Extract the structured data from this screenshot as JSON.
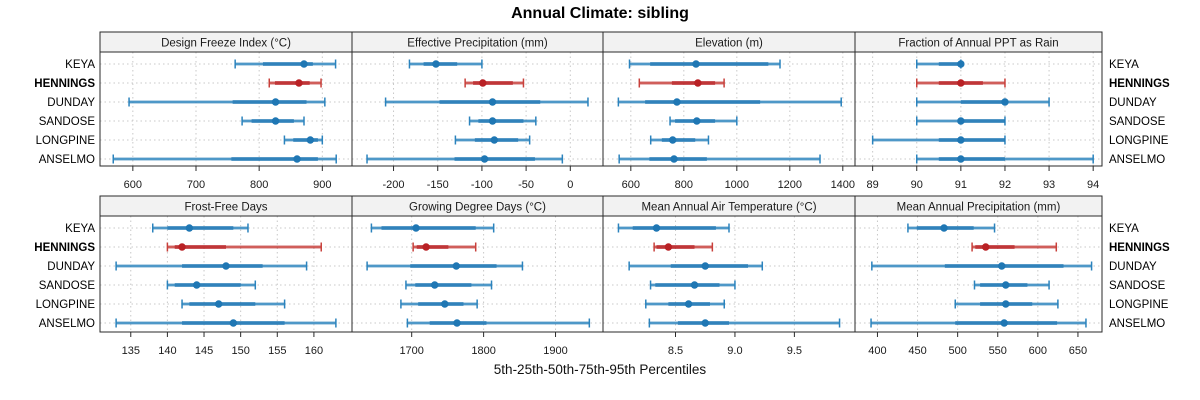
{
  "title": "Annual Climate: sibling",
  "caption": "5th-25th-50th-75th-95th Percentiles",
  "sites": [
    "KEYA",
    "HENNINGS",
    "DUNDAY",
    "SANDOSE",
    "LONGPINE",
    "ANSELMO"
  ],
  "highlight_site": "HENNINGS",
  "colors": {
    "blue_main": "#1f77b4",
    "blue_mid": "#2b83bd",
    "blue_light": "rgba(31,119,180,0.30)",
    "red_main": "#b92125",
    "red_mid": "#c8403b",
    "red_light": "rgba(185,33,37,0.32)",
    "grid": "#c8c8c8",
    "frame": "#2a2a2a",
    "strip_bg": "#f2f2f2",
    "tick_text": "#1a1a1a"
  },
  "chart_data": {
    "type": "scatter",
    "subtype": "trellis-percentile-dotplot",
    "title": "Annual Climate: sibling",
    "xlabel": "5th-25th-50th-75th-95th Percentiles",
    "legend_position": "none",
    "grid": "dotted",
    "percentile_labels": [
      "5th",
      "25th",
      "50th",
      "75th",
      "95th"
    ],
    "categories": [
      "KEYA",
      "HENNINGS",
      "DUNDAY",
      "SANDOSE",
      "LONGPINE",
      "ANSELMO"
    ],
    "highlighted_category": "HENNINGS",
    "panels": [
      {
        "key": "design-freeze-index",
        "title": "Design Freeze Index (°C)",
        "row": 0,
        "col": 0,
        "xlim": [
          548,
          947
        ],
        "tick_values": [
          600,
          700,
          800,
          900
        ],
        "tick_labels": [
          "600",
          "700",
          "800",
          "900"
        ],
        "series": [
          {
            "site": "KEYA",
            "percentiles": [
              762,
              806,
              871,
              885,
              921
            ]
          },
          {
            "site": "HENNINGS",
            "percentiles": [
              816,
              825,
              863,
              880,
              898
            ]
          },
          {
            "site": "DUNDAY",
            "percentiles": [
              594,
              758,
              826,
              875,
              904
            ]
          },
          {
            "site": "SANDOSE",
            "percentiles": [
              773,
              788,
              826,
              855,
              871
            ]
          },
          {
            "site": "LONGPINE",
            "percentiles": [
              840,
              854,
              881,
              893,
              900
            ]
          },
          {
            "site": "ANSELMO",
            "percentiles": [
              569,
              756,
              860,
              893,
              922
            ]
          }
        ]
      },
      {
        "key": "effective-precipitation",
        "title": "Effective Precipitation (mm)",
        "row": 0,
        "col": 1,
        "xlim": [
          -247,
          37
        ],
        "tick_values": [
          -200,
          -150,
          -100,
          -50,
          0
        ],
        "tick_labels": [
          "-200",
          "-150",
          "-100",
          "-50",
          "0"
        ],
        "series": [
          {
            "site": "KEYA",
            "percentiles": [
              -182,
              -166,
              -152,
              -128,
              -100
            ]
          },
          {
            "site": "HENNINGS",
            "percentiles": [
              -119,
              -110,
              -99,
              -65,
              -53
            ]
          },
          {
            "site": "DUNDAY",
            "percentiles": [
              -209,
              -148,
              -88,
              -34,
              20
            ]
          },
          {
            "site": "SANDOSE",
            "percentiles": [
              -114,
              -104,
              -88,
              -53,
              -39
            ]
          },
          {
            "site": "LONGPINE",
            "percentiles": [
              -130,
              -108,
              -86,
              -59,
              -46
            ]
          },
          {
            "site": "ANSELMO",
            "percentiles": [
              -230,
              -131,
              -97,
              -40,
              -9
            ]
          }
        ]
      },
      {
        "key": "elevation",
        "title": "Elevation (m)",
        "row": 0,
        "col": 2,
        "xlim": [
          495,
          1446
        ],
        "tick_values": [
          600,
          800,
          1000,
          1200,
          1400
        ],
        "tick_labels": [
          "600",
          "800",
          "1000",
          "1200",
          "1400"
        ],
        "series": [
          {
            "site": "KEYA",
            "percentiles": [
              595,
              673,
              846,
              1119,
              1163
            ]
          },
          {
            "site": "HENNINGS",
            "percentiles": [
              632,
              755,
              853,
              918,
              952
            ]
          },
          {
            "site": "DUNDAY",
            "percentiles": [
              553,
              654,
              774,
              1088,
              1394
            ]
          },
          {
            "site": "SANDOSE",
            "percentiles": [
              748,
              767,
              849,
              918,
              1000
            ]
          },
          {
            "site": "LONGPINE",
            "percentiles": [
              675,
              717,
              758,
              843,
              893
            ]
          },
          {
            "site": "ANSELMO",
            "percentiles": [
              556,
              670,
              763,
              887,
              1314
            ]
          }
        ]
      },
      {
        "key": "fraction-ppt-as-rain",
        "title": "Fraction of Annual PPT as Rain",
        "row": 0,
        "col": 3,
        "xlim": [
          88.6,
          94.2
        ],
        "tick_values": [
          89,
          90,
          91,
          92,
          93,
          94
        ],
        "tick_labels": [
          "89",
          "90",
          "91",
          "92",
          "93",
          "94"
        ],
        "series": [
          {
            "site": "KEYA",
            "percentiles": [
              90,
              90.5,
              91,
              91,
              91
            ]
          },
          {
            "site": "HENNINGS",
            "percentiles": [
              90,
              90.5,
              91,
              91.5,
              92
            ]
          },
          {
            "site": "DUNDAY",
            "percentiles": [
              90,
              91,
              92,
              92,
              93
            ]
          },
          {
            "site": "SANDOSE",
            "percentiles": [
              90,
              91,
              91,
              92,
              92
            ]
          },
          {
            "site": "LONGPINE",
            "percentiles": [
              89,
              90.5,
              91,
              92,
              92
            ]
          },
          {
            "site": "ANSELMO",
            "percentiles": [
              90,
              90.5,
              91,
              92,
              94
            ]
          }
        ]
      },
      {
        "key": "frost-free-days",
        "title": "Frost-Free Days",
        "row": 1,
        "col": 0,
        "xlim": [
          130.8,
          165.2
        ],
        "tick_values": [
          135,
          140,
          145,
          150,
          155,
          160
        ],
        "tick_labels": [
          "135",
          "140",
          "145",
          "150",
          "155",
          "160"
        ],
        "series": [
          {
            "site": "KEYA",
            "percentiles": [
              138,
              140,
              143,
              149,
              151
            ]
          },
          {
            "site": "HENNINGS",
            "percentiles": [
              140,
              141,
              142,
              148,
              161
            ]
          },
          {
            "site": "DUNDAY",
            "percentiles": [
              133,
              142,
              148,
              153,
              159
            ]
          },
          {
            "site": "SANDOSE",
            "percentiles": [
              140,
              141,
              144,
              150,
              152
            ]
          },
          {
            "site": "LONGPINE",
            "percentiles": [
              142,
              143,
              147,
              152,
              156
            ]
          },
          {
            "site": "ANSELMO",
            "percentiles": [
              133,
              142,
              149,
              156,
              163
            ]
          }
        ]
      },
      {
        "key": "growing-degree-days",
        "title": "Growing Degree Days (°C)",
        "row": 1,
        "col": 1,
        "xlim": [
          1617,
          1966
        ],
        "tick_values": [
          1700,
          1800,
          1900
        ],
        "tick_labels": [
          "1700",
          "1800",
          "1900"
        ],
        "series": [
          {
            "site": "KEYA",
            "percentiles": [
              1644,
              1658,
              1706,
              1789,
              1814
            ]
          },
          {
            "site": "HENNINGS",
            "percentiles": [
              1702,
              1707,
              1720,
              1751,
              1789
            ]
          },
          {
            "site": "DUNDAY",
            "percentiles": [
              1638,
              1698,
              1762,
              1818,
              1854
            ]
          },
          {
            "site": "SANDOSE",
            "percentiles": [
              1692,
              1705,
              1732,
              1783,
              1811
            ]
          },
          {
            "site": "LONGPINE",
            "percentiles": [
              1685,
              1709,
              1746,
              1772,
              1791
            ]
          },
          {
            "site": "ANSELMO",
            "percentiles": [
              1694,
              1725,
              1763,
              1804,
              1947
            ]
          }
        ]
      },
      {
        "key": "mean-annual-air-temperature",
        "title": "Mean Annual Air Temperature (°C)",
        "row": 1,
        "col": 2,
        "xlim": [
          7.89,
          10.01
        ],
        "tick_values": [
          8.5,
          9.0,
          9.5
        ],
        "tick_labels": [
          "8.5",
          "9.0",
          "9.5"
        ],
        "series": [
          {
            "site": "KEYA",
            "percentiles": [
              8.02,
              8.14,
              8.34,
              8.84,
              8.95
            ]
          },
          {
            "site": "HENNINGS",
            "percentiles": [
              8.32,
              8.34,
              8.44,
              8.66,
              8.81
            ]
          },
          {
            "site": "DUNDAY",
            "percentiles": [
              8.11,
              8.46,
              8.75,
              9.11,
              9.23
            ]
          },
          {
            "site": "SANDOSE",
            "percentiles": [
              8.29,
              8.33,
              8.66,
              8.87,
              9.0
            ]
          },
          {
            "site": "LONGPINE",
            "percentiles": [
              8.25,
              8.44,
              8.61,
              8.79,
              8.91
            ]
          },
          {
            "site": "ANSELMO",
            "percentiles": [
              8.28,
              8.52,
              8.75,
              8.95,
              9.88
            ]
          }
        ]
      },
      {
        "key": "mean-annual-precipitation",
        "title": "Mean Annual Precipitation (mm)",
        "row": 1,
        "col": 3,
        "xlim": [
          372,
          680
        ],
        "tick_values": [
          400,
          450,
          500,
          550,
          600,
          650
        ],
        "tick_labels": [
          "400",
          "450",
          "500",
          "550",
          "600",
          "650"
        ],
        "series": [
          {
            "site": "KEYA",
            "percentiles": [
              438,
              449,
              483,
              520,
              546
            ]
          },
          {
            "site": "HENNINGS",
            "percentiles": [
              518,
              522,
              535,
              571,
              623
            ]
          },
          {
            "site": "DUNDAY",
            "percentiles": [
              393,
              484,
              555,
              632,
              667
            ]
          },
          {
            "site": "SANDOSE",
            "percentiles": [
              521,
              528,
              560,
              587,
              614
            ]
          },
          {
            "site": "LONGPINE",
            "percentiles": [
              497,
              528,
              560,
              593,
              625
            ]
          },
          {
            "site": "ANSELMO",
            "percentiles": [
              392,
              497,
              558,
              624,
              660
            ]
          }
        ]
      }
    ]
  }
}
